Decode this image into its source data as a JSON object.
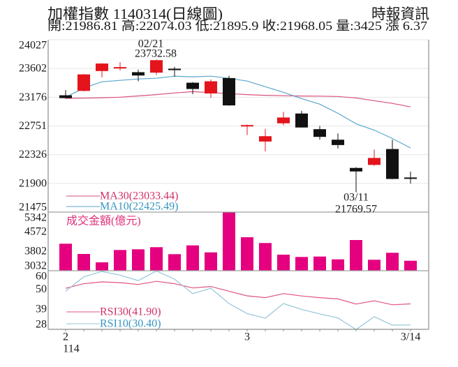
{
  "header": {
    "title": "加權指數 1140314(日線圖)",
    "source": "時報資訊",
    "summary": "開:21986.81 高:22074.03 低:21895.9 收:21968.05 量:3425 漲 6.37"
  },
  "legend": {
    "ma30": "MA30(23033.44)",
    "ma10": "MA10(22425.49)",
    "volume_title": "成交金額(億元)",
    "rsi30": "RSI30(41.90)",
    "rsi10": "RSI10(30.40)"
  },
  "annotations": {
    "high": {
      "date": "02/21",
      "value": "23732.58"
    },
    "low": {
      "date": "03/11",
      "value": "21769.57"
    }
  },
  "x_axis": {
    "year_label": "114"
  },
  "colors": {
    "up_candle": "#e3141b",
    "down_candle": "#111111",
    "ma30": "#d9527c",
    "ma10": "#5aa6cc",
    "ma30_text": "#d0306a",
    "ma10_text": "#3696c0",
    "volume_bar": "#e4007f",
    "volume_text": "#e0307a",
    "rsi30": "#e0557f",
    "rsi10": "#94c6d8",
    "rsi30_text": "#d0306a",
    "rsi10_text": "#3696c0",
    "grid": "#e6e6e6",
    "frame": "#8c8c8c"
  },
  "chart_data": {
    "type": "candlestick",
    "title": "加權指數 1140314(日線圖)",
    "source": "時報資訊",
    "last_day": {
      "open": 21986.81,
      "high": 22074.03,
      "low": 21895.9,
      "close": 21968.05,
      "volume": 3425,
      "change": 6.37
    },
    "price": {
      "ylim": [
        21475,
        24027
      ],
      "yticks": [
        24027,
        23602,
        23176,
        22751,
        22326,
        21900,
        21475
      ],
      "grid": true,
      "candles_ohlc": [
        [
          23205,
          23280,
          23155,
          23163
        ],
        [
          23270,
          23520,
          23262,
          23514
        ],
        [
          23564,
          23680,
          23470,
          23675
        ],
        [
          23608,
          23695,
          23574,
          23616
        ],
        [
          23547,
          23584,
          23412,
          23498
        ],
        [
          23540,
          23732.58,
          23506,
          23725
        ],
        [
          23592,
          23626,
          23478,
          23584
        ],
        [
          23391,
          23400,
          23221,
          23298
        ],
        [
          23232,
          23439,
          23169,
          23412
        ],
        [
          23460,
          23495,
          23050,
          23055
        ],
        [
          22745,
          22770,
          22617,
          22762
        ],
        [
          22520,
          22707,
          22375,
          22599
        ],
        [
          22790,
          22959,
          22762,
          22876
        ],
        [
          22935,
          22975,
          22728,
          22728
        ],
        [
          22703,
          22751,
          22547,
          22589
        ],
        [
          22547,
          22640,
          22416,
          22468
        ],
        [
          22129,
          22140,
          21769.57,
          22077
        ],
        [
          22174,
          22401,
          22160,
          22277
        ],
        [
          22409,
          22547,
          21962,
          21966
        ],
        [
          21986.81,
          22074.03,
          21895.9,
          21968.05
        ]
      ],
      "series": [
        {
          "name": "MA30",
          "last": 23033.44,
          "values": [
            23159,
            23163,
            23168,
            23177,
            23195,
            23215,
            23240,
            23258,
            23245,
            23229,
            23215,
            23205,
            23198,
            23194,
            23192,
            23187,
            23165,
            23125,
            23085,
            23033.44
          ]
        },
        {
          "name": "MA10",
          "last": 22425.49,
          "values": [
            23177,
            23312,
            23405,
            23426,
            23446,
            23457,
            23488,
            23478,
            23488,
            23457,
            23415,
            23332,
            23249,
            23156,
            23073,
            22938,
            22783,
            22689,
            22565,
            22425.49
          ]
        }
      ]
    },
    "volume": {
      "type": "bar",
      "ylabel": "成交金額(億元)",
      "ylim": [
        3032,
        5342
      ],
      "yticks": [
        5342,
        4572,
        3802,
        3032
      ],
      "values": [
        4096,
        3692,
        3362,
        3849,
        3876,
        3959,
        3684,
        4030,
        3755,
        5342,
        4352,
        4124,
        3665,
        3574,
        3590,
        3480,
        4242,
        3464,
        3739,
        3425
      ]
    },
    "rsi": {
      "type": "line",
      "ylim": [
        28,
        60
      ],
      "yticks": [
        60,
        50,
        39,
        28
      ],
      "series": [
        {
          "name": "RSI30",
          "last": 41.9,
          "values": [
            50.4,
            52.9,
            53.9,
            53.5,
            52.5,
            54.2,
            52.9,
            50.6,
            51.4,
            48.8,
            46.3,
            45.3,
            47.5,
            46.2,
            45.3,
            44.6,
            41.8,
            43.6,
            41.4,
            41.9
          ]
        },
        {
          "name": "RSI10",
          "last": 30.4,
          "values": [
            48.8,
            56.7,
            59.6,
            57.6,
            54.6,
            59.9,
            55.4,
            47.5,
            50.4,
            42.1,
            36.6,
            34.1,
            42.1,
            38.9,
            36.4,
            34.2,
            27.9,
            34.9,
            30.3,
            30.4
          ]
        }
      ]
    },
    "x_ticks": [
      {
        "index": 0,
        "label": "2"
      },
      {
        "index": 10,
        "label": "3"
      },
      {
        "index": 19,
        "label": "3/14"
      }
    ],
    "annotations": [
      {
        "index": 5,
        "label": "02/21",
        "value": 23732.58,
        "kind": "high"
      },
      {
        "index": 16,
        "label": "03/11",
        "value": 21769.57,
        "kind": "low"
      }
    ]
  }
}
